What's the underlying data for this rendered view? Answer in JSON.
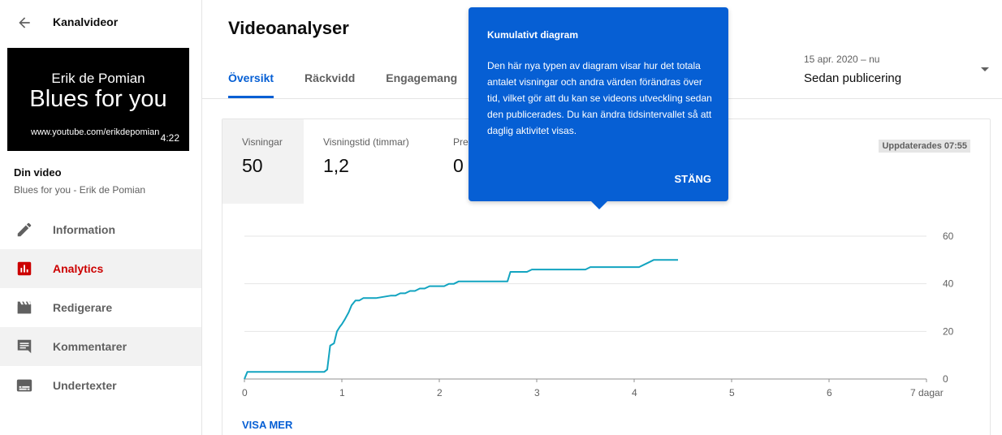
{
  "sidebar": {
    "title": "Kanalvideor",
    "back_icon": "arrow-left-icon",
    "thumbnail": {
      "line1": "Erik de Pomian",
      "line2": "Blues for you",
      "url_text": "www.youtube.com/erikdepomian",
      "duration": "4:22"
    },
    "video_label": "Din video",
    "video_subtitle": "Blues for you - Erik de Pomian",
    "items": [
      {
        "label": "Information",
        "icon": "pencil-icon",
        "active": false
      },
      {
        "label": "Analytics",
        "icon": "analytics-icon",
        "active": true
      },
      {
        "label": "Redigerare",
        "icon": "clapperboard-icon",
        "active": false
      },
      {
        "label": "Kommentarer",
        "icon": "comment-icon",
        "active": false
      },
      {
        "label": "Undertexter",
        "icon": "subtitles-icon",
        "active": false
      }
    ],
    "active_color": "#cc0000"
  },
  "main": {
    "title": "Videoanalyser",
    "tabs": [
      {
        "label": "Översikt",
        "active": true
      },
      {
        "label": "Räckvidd",
        "active": false
      },
      {
        "label": "Engagemang",
        "active": false
      }
    ],
    "range": {
      "dates": "15 apr. 2020 – nu",
      "label": "Sedan publicering"
    },
    "metrics": [
      {
        "label": "Visningar",
        "value": "50"
      },
      {
        "label": "Visningstid (timmar)",
        "value": "1,2"
      },
      {
        "label": "Prenumeranter",
        "value": "0"
      }
    ],
    "updated": "Uppdaterades 07:55",
    "visa_mer": "VISA MER",
    "accent": "#065fd4"
  },
  "tooltip": {
    "title": "Kumulativt diagram",
    "body": "Den här nya typen av diagram visar hur det totala antalet visningar och andra värden förändras över tid, vilket gör att du kan se videons utveckling sedan den publicerades. Du kan ändra tidsintervallet så att daglig aktivitet visas.",
    "close": "STÄNG"
  },
  "chart_data": {
    "type": "line",
    "x_ticks": [
      "0",
      "1",
      "2",
      "3",
      "4",
      "5",
      "6",
      "7 dagar"
    ],
    "y_ticks": [
      "0",
      "20",
      "40",
      "60"
    ],
    "xlim": [
      0,
      7
    ],
    "ylim": [
      0,
      60
    ],
    "grid": true,
    "line_color": "#12a4c0",
    "series": [
      {
        "x": [
          0,
          0.03,
          0.82,
          0.85,
          0.88,
          0.92,
          0.95,
          0.98,
          1.0,
          1.03,
          1.07,
          1.1,
          1.14,
          1.18,
          1.22,
          1.26,
          1.3,
          1.35,
          1.5,
          1.55,
          1.6,
          1.65,
          1.7,
          1.75,
          1.8,
          1.85,
          1.9,
          2.05,
          2.1,
          2.15,
          2.2,
          2.7,
          2.73,
          2.9,
          2.95,
          3.5,
          3.55,
          4.05,
          4.1,
          4.15,
          4.2,
          4.45
        ],
        "y": [
          0,
          3,
          3,
          4,
          14,
          15,
          20,
          22,
          23,
          25,
          28,
          31,
          33,
          33,
          34,
          34,
          34,
          34,
          35,
          35,
          36,
          36,
          37,
          37,
          38,
          38,
          39,
          39,
          40,
          40,
          41,
          41,
          45,
          45,
          46,
          46,
          47,
          47,
          48,
          49,
          50,
          50
        ]
      }
    ]
  }
}
